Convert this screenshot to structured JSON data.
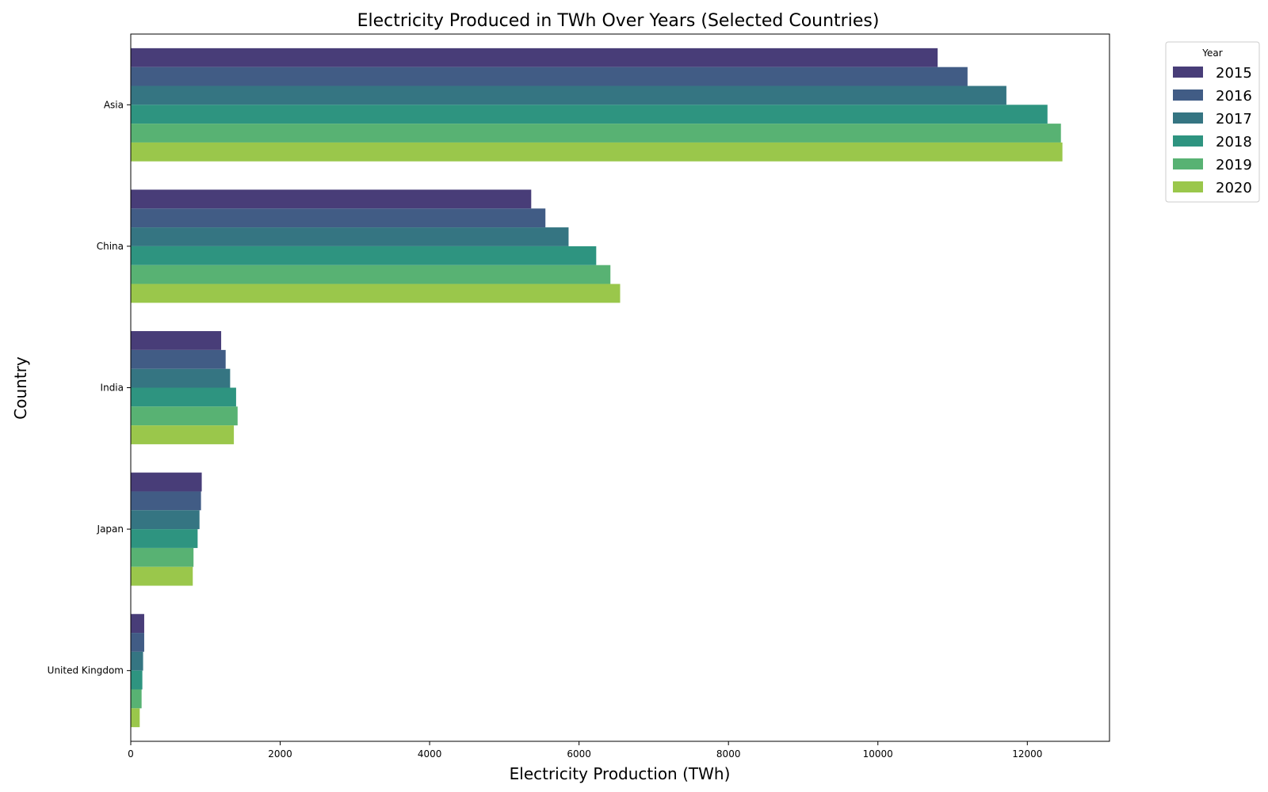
{
  "chart_data": {
    "type": "bar",
    "orientation": "horizontal",
    "title": "Electricity Produced in TWh Over Years (Selected Countries)",
    "xlabel": "Electricity Production (TWh)",
    "ylabel": "Country",
    "xlim": [
      0,
      13100
    ],
    "xticks": [
      0,
      2000,
      4000,
      6000,
      8000,
      10000,
      12000
    ],
    "grid": false,
    "legend": {
      "title": "Year",
      "placement": "outside-top-right"
    },
    "categories": [
      "Asia",
      "China",
      "India",
      "Japan",
      "United Kingdom"
    ],
    "series": [
      {
        "name": "2015",
        "color": "#483d78",
        "values": [
          10800,
          5360,
          1210,
          950,
          180
        ]
      },
      {
        "name": "2016",
        "color": "#415c85",
        "values": [
          11200,
          5550,
          1270,
          940,
          180
        ]
      },
      {
        "name": "2017",
        "color": "#357582",
        "values": [
          11720,
          5860,
          1330,
          920,
          165
        ]
      },
      {
        "name": "2018",
        "color": "#2e9480",
        "values": [
          12270,
          6230,
          1410,
          895,
          155
        ]
      },
      {
        "name": "2019",
        "color": "#58b273",
        "values": [
          12450,
          6420,
          1430,
          840,
          145
        ]
      },
      {
        "name": "2020",
        "color": "#9ac74b",
        "values": [
          12470,
          6550,
          1380,
          830,
          120
        ]
      }
    ]
  }
}
